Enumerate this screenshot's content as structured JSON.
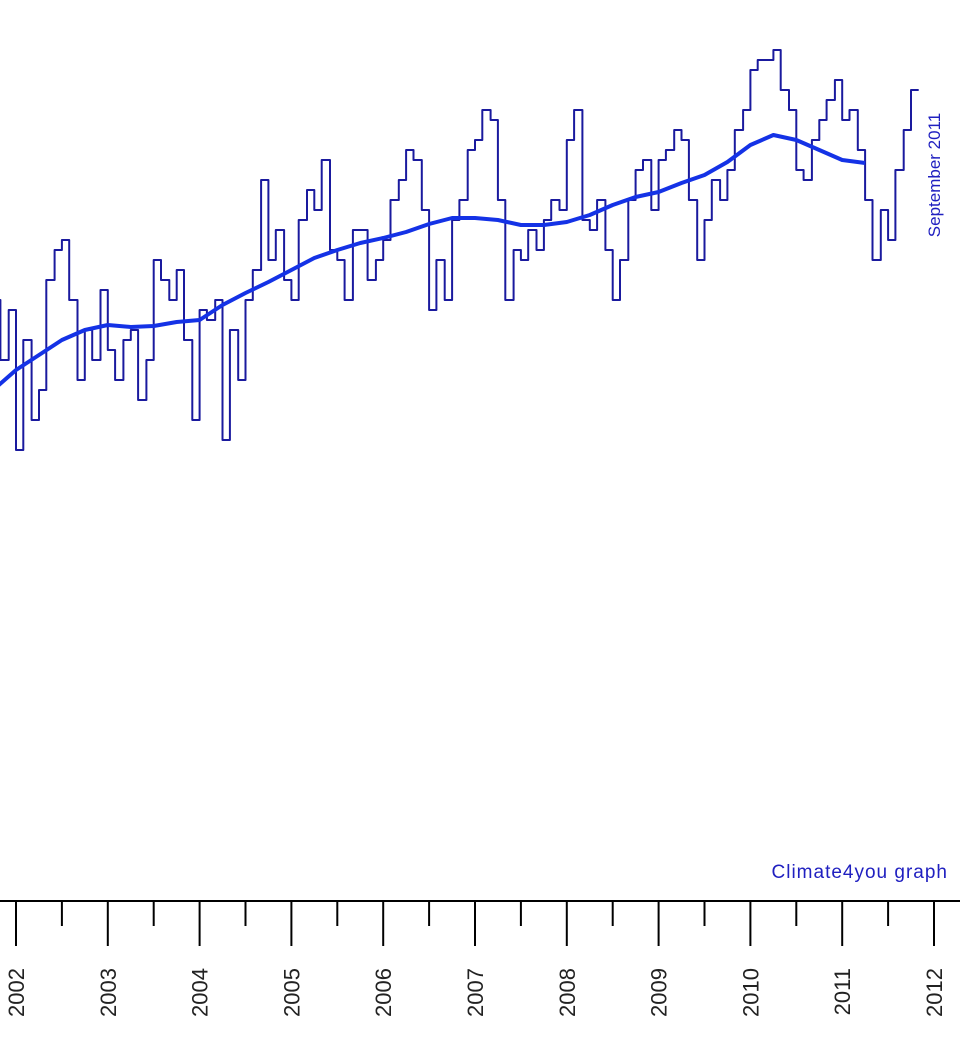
{
  "chart_data": {
    "type": "line",
    "date_label": "September 2011",
    "credit": "Climate4you graph",
    "x_tick_labels": [
      "2002",
      "2003",
      "2004",
      "2005",
      "2006",
      "2007",
      "2008",
      "2009",
      "2010",
      "2011",
      "2012"
    ],
    "xlim": [
      2002,
      2012
    ],
    "grid": false,
    "colors": {
      "monthly": "#1a1a9e",
      "running_mean": "#1432e6",
      "label": "#2020c0",
      "axis": "#000000"
    },
    "series": [
      {
        "key": "monthly",
        "x": [
          2001.75,
          2001.83,
          2001.92,
          2002.0,
          2002.08,
          2002.17,
          2002.25,
          2002.33,
          2002.42,
          2002.5,
          2002.58,
          2002.67,
          2002.75,
          2002.83,
          2002.92,
          2003.0,
          2003.08,
          2003.17,
          2003.25,
          2003.33,
          2003.42,
          2003.5,
          2003.58,
          2003.67,
          2003.75,
          2003.83,
          2003.92,
          2004.0,
          2004.08,
          2004.17,
          2004.25,
          2004.33,
          2004.42,
          2004.5,
          2004.58,
          2004.67,
          2004.75,
          2004.83,
          2004.92,
          2005.0,
          2005.08,
          2005.17,
          2005.25,
          2005.33,
          2005.42,
          2005.5,
          2005.58,
          2005.67,
          2005.75,
          2005.83,
          2005.92,
          2006.0,
          2006.08,
          2006.17,
          2006.25,
          2006.33,
          2006.42,
          2006.5,
          2006.58,
          2006.67,
          2006.75,
          2006.83,
          2006.92,
          2007.0,
          2007.08,
          2007.17,
          2007.25,
          2007.33,
          2007.42,
          2007.5,
          2007.58,
          2007.67,
          2007.75,
          2007.83,
          2007.92,
          2008.0,
          2008.08,
          2008.17,
          2008.25,
          2008.33,
          2008.42,
          2008.5,
          2008.58,
          2008.67,
          2008.75,
          2008.83,
          2008.92,
          2009.0,
          2009.08,
          2009.17,
          2009.25,
          2009.33,
          2009.42,
          2009.5,
          2009.58,
          2009.67,
          2009.75,
          2009.83,
          2009.92,
          2010.0,
          2010.08,
          2010.17,
          2010.25,
          2010.33,
          2010.42,
          2010.5,
          2010.58,
          2010.67,
          2010.75,
          2010.83,
          2010.92,
          2011.0,
          2011.08,
          2011.17,
          2011.25,
          2011.33,
          2011.42,
          2011.5,
          2011.58,
          2011.67,
          2011.75
        ],
        "y": [
          300,
          360,
          310,
          450,
          340,
          420,
          390,
          280,
          250,
          240,
          300,
          380,
          330,
          360,
          290,
          350,
          380,
          340,
          330,
          400,
          360,
          260,
          280,
          300,
          270,
          340,
          420,
          310,
          320,
          300,
          440,
          330,
          380,
          300,
          270,
          180,
          260,
          230,
          280,
          300,
          220,
          190,
          210,
          160,
          250,
          260,
          300,
          230,
          230,
          280,
          260,
          240,
          200,
          180,
          150,
          160,
          210,
          310,
          260,
          300,
          220,
          200,
          150,
          140,
          110,
          120,
          200,
          300,
          250,
          260,
          230,
          250,
          220,
          200,
          210,
          140,
          110,
          220,
          230,
          200,
          250,
          300,
          260,
          200,
          170,
          160,
          210,
          160,
          150,
          130,
          140,
          200,
          260,
          220,
          180,
          200,
          170,
          130,
          110,
          70,
          60,
          60,
          50,
          90,
          110,
          170,
          180,
          140,
          120,
          100,
          80,
          120,
          110,
          150,
          200,
          260,
          210,
          240,
          170,
          130,
          90
        ]
      },
      {
        "key": "running_mean",
        "x": [
          2001.75,
          2002.0,
          2002.25,
          2002.5,
          2002.75,
          2003.0,
          2003.25,
          2003.5,
          2003.75,
          2004.0,
          2004.25,
          2004.5,
          2004.75,
          2005.0,
          2005.25,
          2005.5,
          2005.75,
          2006.0,
          2006.25,
          2006.5,
          2006.75,
          2007.0,
          2007.25,
          2007.5,
          2007.75,
          2008.0,
          2008.25,
          2008.5,
          2008.75,
          2009.0,
          2009.25,
          2009.5,
          2009.75,
          2010.0,
          2010.25,
          2010.5,
          2010.75,
          2011.0,
          2011.25
        ],
        "y": [
          390,
          370,
          355,
          340,
          330,
          325,
          327,
          326,
          322,
          320,
          305,
          293,
          282,
          270,
          258,
          250,
          243,
          238,
          232,
          224,
          218,
          218,
          220,
          225,
          225,
          222,
          215,
          205,
          197,
          192,
          183,
          175,
          162,
          145,
          135,
          140,
          150,
          160,
          163
        ]
      }
    ]
  }
}
